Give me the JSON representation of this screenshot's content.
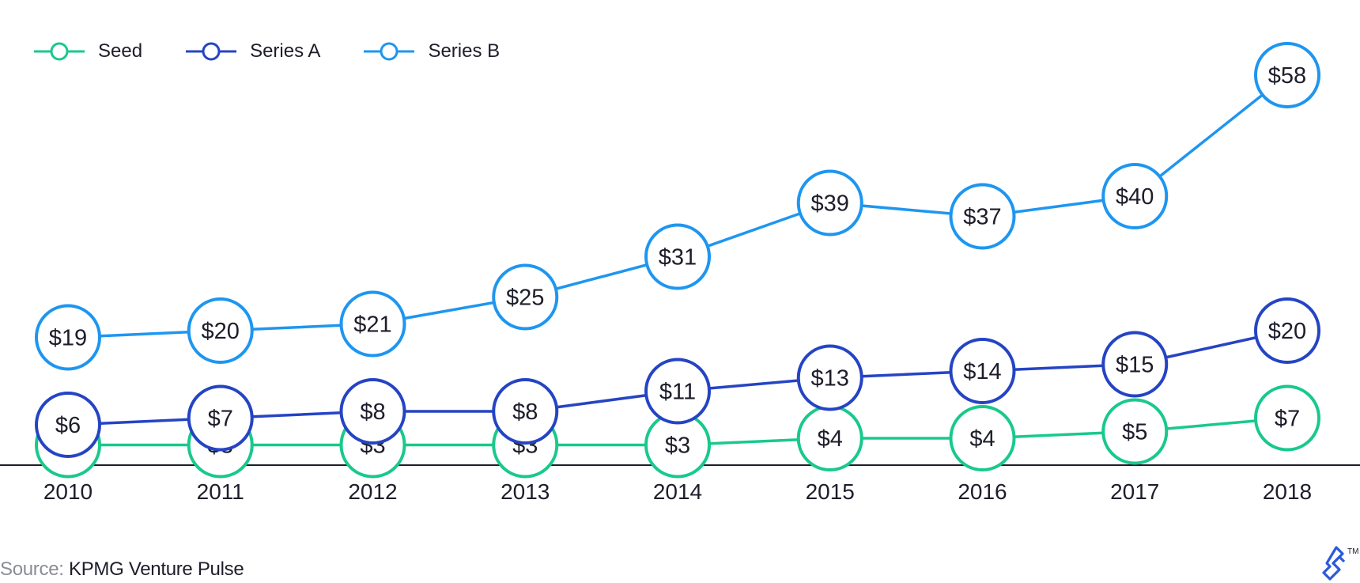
{
  "chart_data": {
    "type": "line",
    "categories": [
      "2010",
      "2011",
      "2012",
      "2013",
      "2014",
      "2015",
      "2016",
      "2017",
      "2018"
    ],
    "series": [
      {
        "name": "Seed",
        "color": "#19c98b",
        "values": [
          3,
          3,
          3,
          3,
          3,
          4,
          4,
          5,
          7
        ],
        "labels": [
          "$3",
          "$3",
          "$3",
          "$3",
          "$3",
          "$4",
          "$4",
          "$5",
          "$7"
        ]
      },
      {
        "name": "Series A",
        "color": "#2544c4",
        "values": [
          6,
          7,
          8,
          8,
          11,
          13,
          14,
          15,
          20
        ],
        "labels": [
          "$6",
          "$7",
          "$8",
          "$8",
          "$11",
          "$13",
          "$14",
          "$15",
          "$20"
        ]
      },
      {
        "name": "Series B",
        "color": "#1e96f0",
        "values": [
          19,
          20,
          21,
          25,
          31,
          39,
          37,
          40,
          58
        ],
        "labels": [
          "$19",
          "$20",
          "$21",
          "$25",
          "$31",
          "$39",
          "$37",
          "$40",
          "$58"
        ]
      }
    ],
    "ylim": [
      0,
      64
    ],
    "grid": false,
    "legend_position": "top-left"
  },
  "source": {
    "label": "Source:",
    "text": "KPMG Venture Pulse"
  },
  "logo": {
    "icon": "toptal-logo-icon",
    "mark": "TM"
  }
}
